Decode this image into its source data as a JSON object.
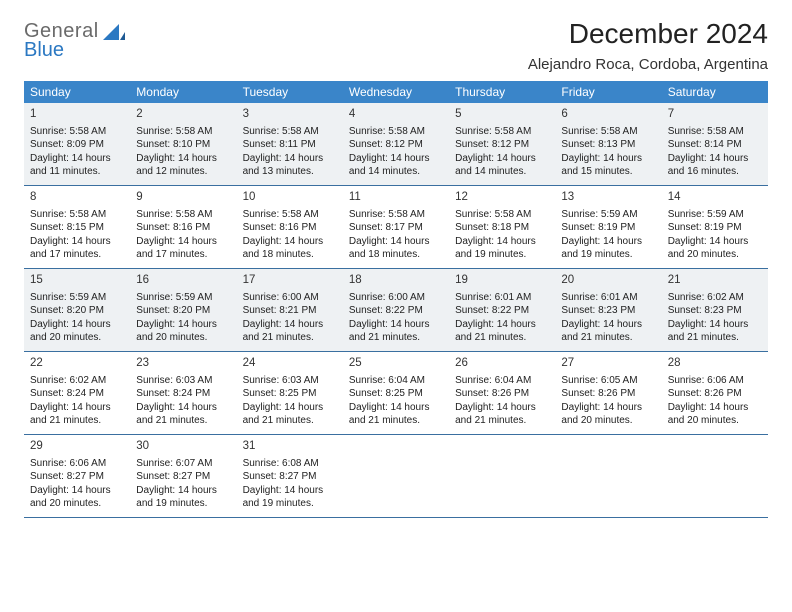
{
  "logo": {
    "line1": "General",
    "line2": "Blue"
  },
  "title": "December 2024",
  "location": "Alejandro Roca, Cordoba, Argentina",
  "colors": {
    "header_bg": "#3a85c9",
    "header_text": "#ffffff",
    "row_border": "#3a6fa0",
    "shaded_bg": "#eef1f3",
    "logo_gray": "#6a6a6a",
    "logo_blue": "#2b78c2"
  },
  "typography": {
    "title_fontsize": 28,
    "location_fontsize": 15,
    "dow_fontsize": 12,
    "daynum_fontsize": 11.5,
    "body_fontsize": 10
  },
  "days_of_week": [
    "Sunday",
    "Monday",
    "Tuesday",
    "Wednesday",
    "Thursday",
    "Friday",
    "Saturday"
  ],
  "start_offset": 0,
  "shaded_weeks": [
    0,
    2
  ],
  "days": [
    {
      "n": 1,
      "sr": "5:58 AM",
      "ss": "8:09 PM",
      "dl": "14 hours and 11 minutes."
    },
    {
      "n": 2,
      "sr": "5:58 AM",
      "ss": "8:10 PM",
      "dl": "14 hours and 12 minutes."
    },
    {
      "n": 3,
      "sr": "5:58 AM",
      "ss": "8:11 PM",
      "dl": "14 hours and 13 minutes."
    },
    {
      "n": 4,
      "sr": "5:58 AM",
      "ss": "8:12 PM",
      "dl": "14 hours and 14 minutes."
    },
    {
      "n": 5,
      "sr": "5:58 AM",
      "ss": "8:12 PM",
      "dl": "14 hours and 14 minutes."
    },
    {
      "n": 6,
      "sr": "5:58 AM",
      "ss": "8:13 PM",
      "dl": "14 hours and 15 minutes."
    },
    {
      "n": 7,
      "sr": "5:58 AM",
      "ss": "8:14 PM",
      "dl": "14 hours and 16 minutes."
    },
    {
      "n": 8,
      "sr": "5:58 AM",
      "ss": "8:15 PM",
      "dl": "14 hours and 17 minutes."
    },
    {
      "n": 9,
      "sr": "5:58 AM",
      "ss": "8:16 PM",
      "dl": "14 hours and 17 minutes."
    },
    {
      "n": 10,
      "sr": "5:58 AM",
      "ss": "8:16 PM",
      "dl": "14 hours and 18 minutes."
    },
    {
      "n": 11,
      "sr": "5:58 AM",
      "ss": "8:17 PM",
      "dl": "14 hours and 18 minutes."
    },
    {
      "n": 12,
      "sr": "5:58 AM",
      "ss": "8:18 PM",
      "dl": "14 hours and 19 minutes."
    },
    {
      "n": 13,
      "sr": "5:59 AM",
      "ss": "8:19 PM",
      "dl": "14 hours and 19 minutes."
    },
    {
      "n": 14,
      "sr": "5:59 AM",
      "ss": "8:19 PM",
      "dl": "14 hours and 20 minutes."
    },
    {
      "n": 15,
      "sr": "5:59 AM",
      "ss": "8:20 PM",
      "dl": "14 hours and 20 minutes."
    },
    {
      "n": 16,
      "sr": "5:59 AM",
      "ss": "8:20 PM",
      "dl": "14 hours and 20 minutes."
    },
    {
      "n": 17,
      "sr": "6:00 AM",
      "ss": "8:21 PM",
      "dl": "14 hours and 21 minutes."
    },
    {
      "n": 18,
      "sr": "6:00 AM",
      "ss": "8:22 PM",
      "dl": "14 hours and 21 minutes."
    },
    {
      "n": 19,
      "sr": "6:01 AM",
      "ss": "8:22 PM",
      "dl": "14 hours and 21 minutes."
    },
    {
      "n": 20,
      "sr": "6:01 AM",
      "ss": "8:23 PM",
      "dl": "14 hours and 21 minutes."
    },
    {
      "n": 21,
      "sr": "6:02 AM",
      "ss": "8:23 PM",
      "dl": "14 hours and 21 minutes."
    },
    {
      "n": 22,
      "sr": "6:02 AM",
      "ss": "8:24 PM",
      "dl": "14 hours and 21 minutes."
    },
    {
      "n": 23,
      "sr": "6:03 AM",
      "ss": "8:24 PM",
      "dl": "14 hours and 21 minutes."
    },
    {
      "n": 24,
      "sr": "6:03 AM",
      "ss": "8:25 PM",
      "dl": "14 hours and 21 minutes."
    },
    {
      "n": 25,
      "sr": "6:04 AM",
      "ss": "8:25 PM",
      "dl": "14 hours and 21 minutes."
    },
    {
      "n": 26,
      "sr": "6:04 AM",
      "ss": "8:26 PM",
      "dl": "14 hours and 21 minutes."
    },
    {
      "n": 27,
      "sr": "6:05 AM",
      "ss": "8:26 PM",
      "dl": "14 hours and 20 minutes."
    },
    {
      "n": 28,
      "sr": "6:06 AM",
      "ss": "8:26 PM",
      "dl": "14 hours and 20 minutes."
    },
    {
      "n": 29,
      "sr": "6:06 AM",
      "ss": "8:27 PM",
      "dl": "14 hours and 20 minutes."
    },
    {
      "n": 30,
      "sr": "6:07 AM",
      "ss": "8:27 PM",
      "dl": "14 hours and 19 minutes."
    },
    {
      "n": 31,
      "sr": "6:08 AM",
      "ss": "8:27 PM",
      "dl": "14 hours and 19 minutes."
    }
  ],
  "labels": {
    "sunrise": "Sunrise:",
    "sunset": "Sunset:",
    "daylight": "Daylight:"
  }
}
